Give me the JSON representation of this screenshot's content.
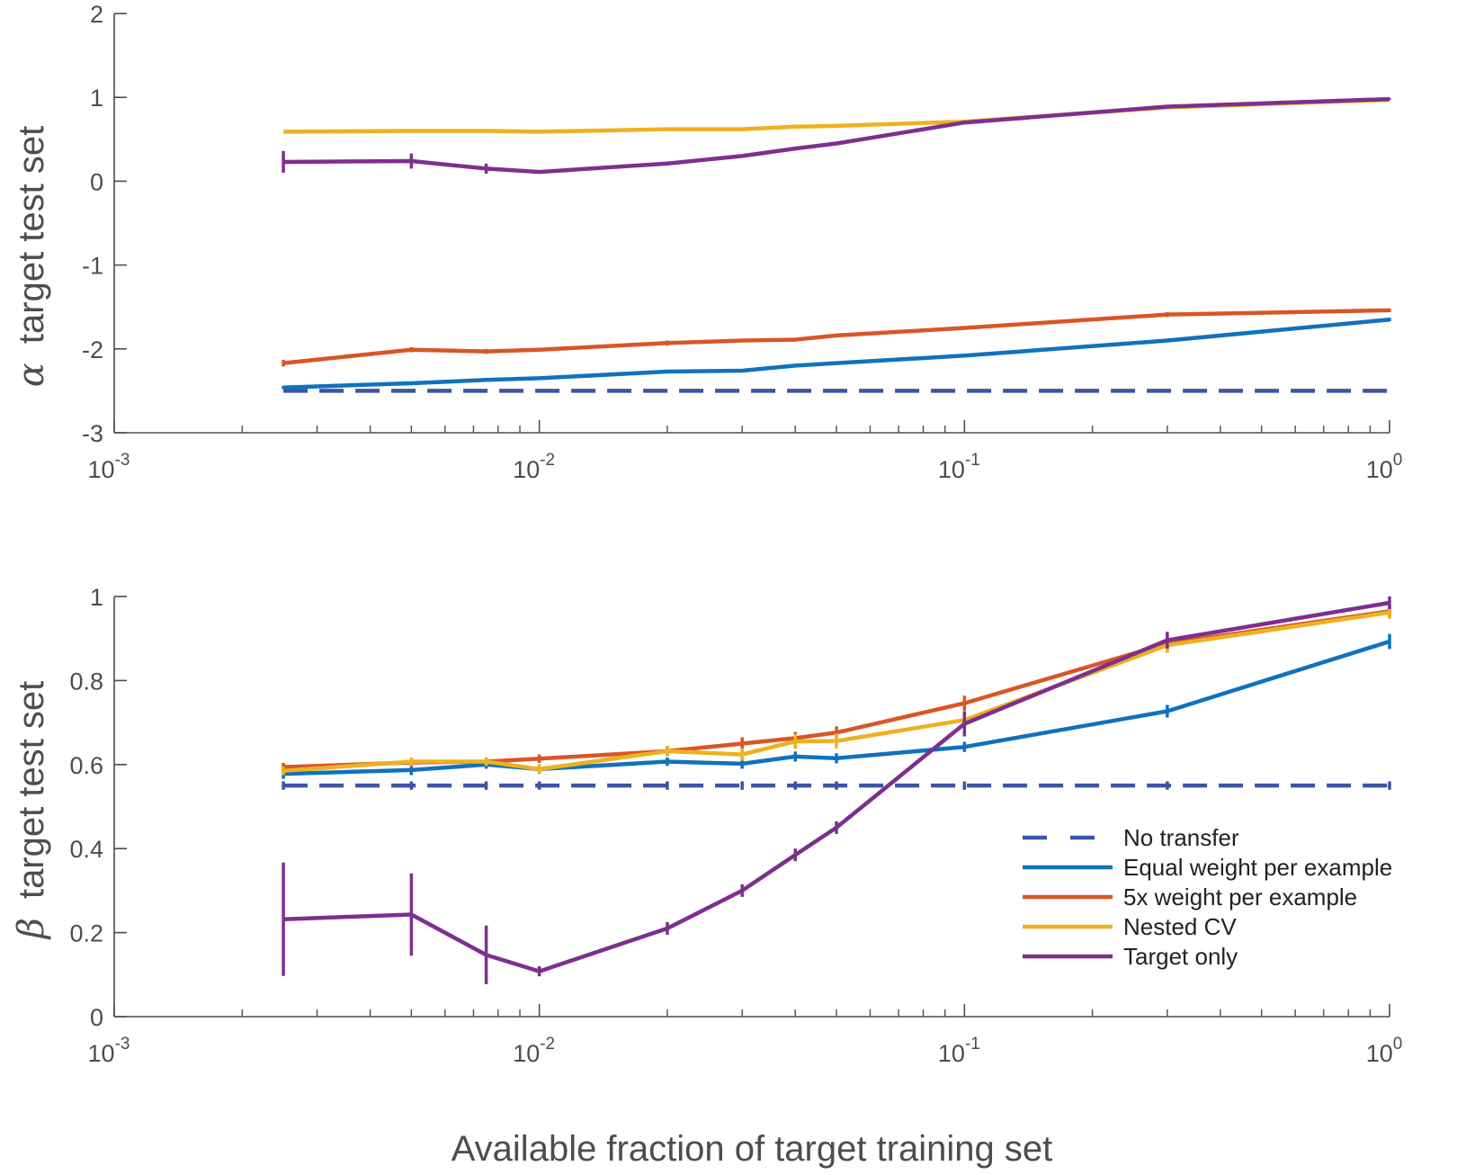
{
  "chart_data": [
    {
      "type": "line",
      "panel": "top",
      "xscale": "log",
      "xlim": [
        0.001,
        1
      ],
      "ylim": [
        -3,
        2
      ],
      "xticks": [
        0.001,
        0.01,
        0.1,
        1
      ],
      "xtick_labels": [
        {
          "base": "10",
          "exp": "-3"
        },
        {
          "base": "10",
          "exp": "-2"
        },
        {
          "base": "10",
          "exp": "-1"
        },
        {
          "base": "10",
          "exp": "0"
        }
      ],
      "yticks": [
        2,
        1,
        0,
        -1,
        -2,
        -3
      ],
      "ytick_labels": [
        "2",
        "1",
        "0",
        "-1",
        "-2",
        "-3"
      ],
      "ylabel_symbol": "α",
      "ylabel": "target test set",
      "xlabel": "",
      "grid": false,
      "x": [
        0.0025,
        0.005,
        0.0075,
        0.01,
        0.02,
        0.03,
        0.04,
        0.05,
        0.1,
        0.3,
        1
      ],
      "series": [
        {
          "name": "No transfer",
          "color": "#3b55a6",
          "dashed": true,
          "values": [
            -2.5,
            -2.5,
            -2.5,
            -2.5,
            -2.5,
            -2.5,
            -2.5,
            -2.5,
            -2.5,
            -2.5,
            -2.5
          ],
          "errors": [
            0,
            0,
            0,
            0,
            0,
            0,
            0,
            0,
            0,
            0,
            0
          ]
        },
        {
          "name": "Equal weight per example",
          "color": "#0f72bd",
          "dashed": false,
          "values": [
            -2.46,
            -2.41,
            -2.37,
            -2.35,
            -2.27,
            -2.26,
            -2.2,
            -2.17,
            -2.08,
            -1.9,
            -1.65
          ],
          "errors": [
            0.02,
            0.01,
            0.01,
            0.01,
            0.01,
            0.01,
            0.01,
            0.01,
            0.01,
            0.02,
            0.02
          ]
        },
        {
          "name": "5x weight per example",
          "color": "#d95526",
          "dashed": false,
          "values": [
            -2.17,
            -2.01,
            -2.03,
            -2.01,
            -1.93,
            -1.9,
            -1.89,
            -1.84,
            -1.75,
            -1.59,
            -1.54
          ],
          "errors": [
            0.04,
            0.03,
            0.03,
            0.02,
            0.03,
            0.02,
            0.01,
            0.01,
            0.02,
            0.03,
            0.02
          ]
        },
        {
          "name": "Nested CV",
          "color": "#edb120",
          "dashed": false,
          "values": [
            0.59,
            0.6,
            0.6,
            0.59,
            0.62,
            0.62,
            0.65,
            0.66,
            0.71,
            0.88,
            0.97
          ],
          "errors": [
            0,
            0,
            0,
            0,
            0,
            0,
            0,
            0,
            0,
            0,
            0
          ]
        },
        {
          "name": "Target only",
          "color": "#7e2f8e",
          "dashed": false,
          "values": [
            0.23,
            0.24,
            0.15,
            0.11,
            0.21,
            0.3,
            0.39,
            0.45,
            0.7,
            0.89,
            0.98
          ],
          "errors": [
            0.13,
            0.09,
            0.06,
            0.01,
            0.01,
            0.01,
            0.01,
            0.01,
            0.01,
            0.01,
            0.01
          ]
        }
      ]
    },
    {
      "type": "line",
      "panel": "bottom",
      "xscale": "log",
      "xlim": [
        0.001,
        1
      ],
      "ylim": [
        0,
        1
      ],
      "xticks": [
        0.001,
        0.01,
        0.1,
        1
      ],
      "xtick_labels": [
        {
          "base": "10",
          "exp": "-3"
        },
        {
          "base": "10",
          "exp": "-2"
        },
        {
          "base": "10",
          "exp": "-1"
        },
        {
          "base": "10",
          "exp": "0"
        }
      ],
      "yticks": [
        1,
        0.8,
        0.6,
        0.4,
        0.2,
        0
      ],
      "ytick_labels": [
        "1",
        "0.8",
        "0.6",
        "0.4",
        "0.2",
        "0"
      ],
      "ylabel_symbol": "β",
      "ylabel": "target test set",
      "xlabel": "Available fraction of target training set",
      "grid": false,
      "legend": "bottom-right",
      "x": [
        0.0025,
        0.005,
        0.0075,
        0.01,
        0.02,
        0.03,
        0.04,
        0.05,
        0.1,
        0.3,
        1
      ],
      "series": [
        {
          "name": "No transfer",
          "color": "#3b55a6",
          "dashed": true,
          "values": [
            0.55,
            0.55,
            0.55,
            0.55,
            0.55,
            0.55,
            0.55,
            0.55,
            0.55,
            0.55,
            0.55
          ],
          "errors": [
            0.01,
            0.01,
            0.01,
            0.01,
            0.01,
            0.01,
            0.01,
            0.01,
            0.01,
            0.01,
            0.01
          ]
        },
        {
          "name": "Equal weight per example",
          "color": "#0f72bd",
          "dashed": false,
          "values": [
            0.578,
            0.587,
            0.6,
            0.589,
            0.607,
            0.602,
            0.619,
            0.615,
            0.642,
            0.727,
            0.893
          ],
          "errors": [
            0.012,
            0.012,
            0.01,
            0.008,
            0.01,
            0.012,
            0.012,
            0.012,
            0.012,
            0.015,
            0.018
          ]
        },
        {
          "name": "5x weight per example",
          "color": "#d95526",
          "dashed": false,
          "values": [
            0.594,
            0.605,
            0.607,
            0.614,
            0.632,
            0.65,
            0.663,
            0.676,
            0.746,
            0.888,
            0.965
          ],
          "errors": [
            0.01,
            0.01,
            0.01,
            0.01,
            0.012,
            0.015,
            0.015,
            0.015,
            0.018,
            0.018,
            0.015
          ]
        },
        {
          "name": "Nested CV",
          "color": "#edb120",
          "dashed": false,
          "values": [
            0.585,
            0.607,
            0.607,
            0.589,
            0.632,
            0.624,
            0.655,
            0.656,
            0.706,
            0.884,
            0.962
          ],
          "errors": [
            0.01,
            0.01,
            0.01,
            0.012,
            0.012,
            0.015,
            0.018,
            0.018,
            0.018,
            0.018,
            0.015
          ]
        },
        {
          "name": "Target only",
          "color": "#7e2f8e",
          "dashed": false,
          "values": [
            0.232,
            0.243,
            0.147,
            0.108,
            0.21,
            0.3,
            0.385,
            0.45,
            0.697,
            0.896,
            0.985
          ],
          "errors": [
            0.135,
            0.098,
            0.07,
            0.012,
            0.015,
            0.015,
            0.015,
            0.015,
            0.03,
            0.02,
            0.015
          ]
        }
      ]
    }
  ]
}
